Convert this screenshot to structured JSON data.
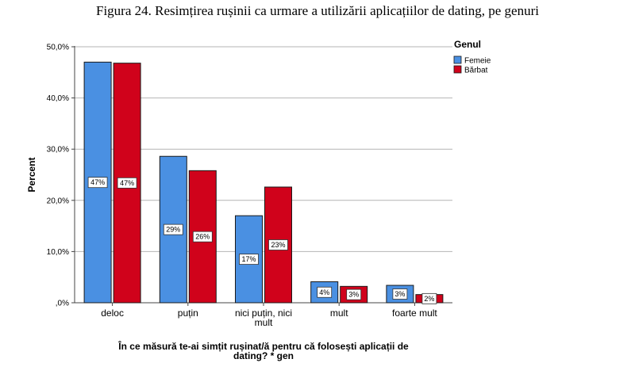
{
  "figure": {
    "caption": "Figura 24. Resimțirea rușinii ca urmare a utilizării aplicațiilor de dating, pe genuri"
  },
  "chart_data": {
    "type": "bar",
    "title": "Figura 24. Resimțirea rușinii ca urmare a utilizării aplicațiilor de dating, pe genuri",
    "xlabel_lines": [
      "În ce măsură te-ai simțit rușinat/ă pentru că folosești aplicații de",
      "dating? * gen"
    ],
    "ylabel": "Percent",
    "ylim": [
      0,
      50
    ],
    "yticks": [
      0,
      10,
      20,
      30,
      40,
      50
    ],
    "ytick_labels": [
      ",0%",
      "10,0%",
      "20,0%",
      "30,0%",
      "40,0%",
      "50,0%"
    ],
    "grid": true,
    "categories": [
      [
        "deloc"
      ],
      [
        "puțin"
      ],
      [
        "nici puțin, nici",
        "mult"
      ],
      [
        "mult"
      ],
      [
        "foarte mult"
      ]
    ],
    "legend": {
      "title": "Genul",
      "position": "top-right"
    },
    "series": [
      {
        "name": "Femeie",
        "color": "#4A90E2",
        "values": [
          47.0,
          28.6,
          17.0,
          4.1,
          3.4
        ],
        "labels": [
          "47%",
          "29%",
          "17%",
          "4%",
          "3%"
        ]
      },
      {
        "name": "Bărbat",
        "color": "#D0021B",
        "values": [
          46.8,
          25.8,
          22.6,
          3.2,
          1.6
        ],
        "labels": [
          "47%",
          "26%",
          "23%",
          "3%",
          "2%"
        ]
      }
    ]
  }
}
